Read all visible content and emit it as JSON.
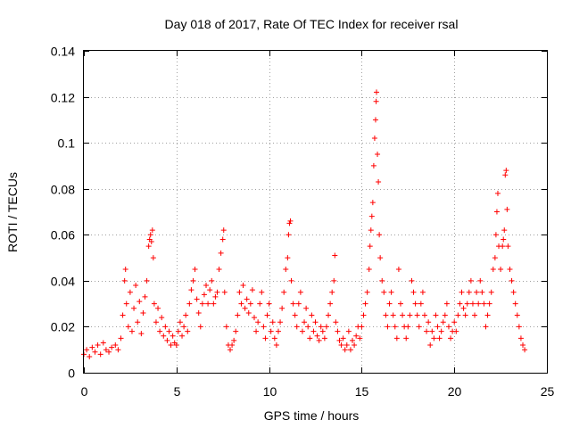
{
  "chart_data": {
    "type": "scatter",
    "title": "Day 018 of 2017, Rate Of TEC Index for receiver rsal",
    "xlabel": "GPS time / hours",
    "ylabel": "ROTI / TECUs",
    "xlim": [
      0,
      25
    ],
    "ylim": [
      0,
      0.14
    ],
    "xticks": [
      0,
      5,
      10,
      15,
      20,
      25
    ],
    "xtick_labels": [
      "0",
      "5",
      "10",
      "15",
      "20",
      "25"
    ],
    "yticks": [
      0,
      0.02,
      0.04,
      0.06,
      0.08,
      0.1,
      0.12,
      0.14
    ],
    "ytick_labels": [
      "0",
      "0.02",
      "0.04",
      "0.06",
      "0.08",
      "0.1",
      "0.12",
      "0.14"
    ],
    "grid": true,
    "marker": "+",
    "color": "#ff0000",
    "series": [
      {
        "name": "ROTI",
        "points": [
          [
            0.0,
            0.008
          ],
          [
            0.15,
            0.01
          ],
          [
            0.3,
            0.007
          ],
          [
            0.45,
            0.011
          ],
          [
            0.6,
            0.009
          ],
          [
            0.75,
            0.012
          ],
          [
            0.9,
            0.008
          ],
          [
            1.05,
            0.013
          ],
          [
            1.2,
            0.01
          ],
          [
            1.35,
            0.009
          ],
          [
            1.5,
            0.011
          ],
          [
            1.7,
            0.012
          ],
          [
            1.85,
            0.01
          ],
          [
            2.0,
            0.015
          ],
          [
            2.1,
            0.025
          ],
          [
            2.2,
            0.04
          ],
          [
            2.25,
            0.045
          ],
          [
            2.3,
            0.03
          ],
          [
            2.4,
            0.02
          ],
          [
            2.5,
            0.035
          ],
          [
            2.6,
            0.018
          ],
          [
            2.7,
            0.028
          ],
          [
            2.8,
            0.038
          ],
          [
            2.9,
            0.022
          ],
          [
            3.0,
            0.031
          ],
          [
            3.1,
            0.017
          ],
          [
            3.2,
            0.026
          ],
          [
            3.3,
            0.033
          ],
          [
            3.4,
            0.04
          ],
          [
            3.5,
            0.055
          ],
          [
            3.55,
            0.058
          ],
          [
            3.6,
            0.06
          ],
          [
            3.65,
            0.057
          ],
          [
            3.7,
            0.062
          ],
          [
            3.75,
            0.05
          ],
          [
            3.8,
            0.03
          ],
          [
            3.9,
            0.022
          ],
          [
            4.0,
            0.028
          ],
          [
            4.1,
            0.018
          ],
          [
            4.2,
            0.024
          ],
          [
            4.3,
            0.016
          ],
          [
            4.4,
            0.02
          ],
          [
            4.5,
            0.014
          ],
          [
            4.6,
            0.018
          ],
          [
            4.7,
            0.012
          ],
          [
            4.8,
            0.016
          ],
          [
            4.9,
            0.013
          ],
          [
            5.0,
            0.012
          ],
          [
            5.1,
            0.018
          ],
          [
            5.2,
            0.022
          ],
          [
            5.3,
            0.016
          ],
          [
            5.4,
            0.02
          ],
          [
            5.5,
            0.025
          ],
          [
            5.6,
            0.018
          ],
          [
            5.7,
            0.03
          ],
          [
            5.8,
            0.036
          ],
          [
            5.9,
            0.04
          ],
          [
            6.0,
            0.045
          ],
          [
            6.1,
            0.032
          ],
          [
            6.2,
            0.026
          ],
          [
            6.3,
            0.02
          ],
          [
            6.4,
            0.03
          ],
          [
            6.5,
            0.034
          ],
          [
            6.6,
            0.038
          ],
          [
            6.7,
            0.03
          ],
          [
            6.8,
            0.036
          ],
          [
            6.9,
            0.04
          ],
          [
            7.0,
            0.03
          ],
          [
            7.1,
            0.033
          ],
          [
            7.2,
            0.035
          ],
          [
            7.3,
            0.045
          ],
          [
            7.4,
            0.052
          ],
          [
            7.5,
            0.058
          ],
          [
            7.55,
            0.062
          ],
          [
            7.6,
            0.035
          ],
          [
            7.7,
            0.02
          ],
          [
            7.8,
            0.012
          ],
          [
            7.9,
            0.01
          ],
          [
            8.0,
            0.012
          ],
          [
            8.1,
            0.014
          ],
          [
            8.2,
            0.018
          ],
          [
            8.3,
            0.025
          ],
          [
            8.4,
            0.035
          ],
          [
            8.5,
            0.03
          ],
          [
            8.6,
            0.038
          ],
          [
            8.7,
            0.028
          ],
          [
            8.8,
            0.032
          ],
          [
            8.9,
            0.026
          ],
          [
            9.0,
            0.03
          ],
          [
            9.1,
            0.036
          ],
          [
            9.2,
            0.024
          ],
          [
            9.3,
            0.018
          ],
          [
            9.4,
            0.022
          ],
          [
            9.5,
            0.03
          ],
          [
            9.6,
            0.035
          ],
          [
            9.7,
            0.02
          ],
          [
            9.8,
            0.015
          ],
          [
            9.9,
            0.025
          ],
          [
            10.0,
            0.03
          ],
          [
            10.1,
            0.018
          ],
          [
            10.2,
            0.022
          ],
          [
            10.3,
            0.015
          ],
          [
            10.4,
            0.012
          ],
          [
            10.5,
            0.018
          ],
          [
            10.6,
            0.022
          ],
          [
            10.7,
            0.028
          ],
          [
            10.8,
            0.035
          ],
          [
            10.9,
            0.045
          ],
          [
            11.0,
            0.05
          ],
          [
            11.05,
            0.06
          ],
          [
            11.1,
            0.065
          ],
          [
            11.15,
            0.066
          ],
          [
            11.2,
            0.04
          ],
          [
            11.3,
            0.03
          ],
          [
            11.4,
            0.025
          ],
          [
            11.5,
            0.02
          ],
          [
            11.6,
            0.03
          ],
          [
            11.7,
            0.035
          ],
          [
            11.8,
            0.018
          ],
          [
            11.9,
            0.022
          ],
          [
            12.0,
            0.028
          ],
          [
            12.1,
            0.02
          ],
          [
            12.2,
            0.015
          ],
          [
            12.3,
            0.025
          ],
          [
            12.4,
            0.018
          ],
          [
            12.5,
            0.022
          ],
          [
            12.6,
            0.016
          ],
          [
            12.7,
            0.014
          ],
          [
            12.8,
            0.02
          ],
          [
            12.9,
            0.018
          ],
          [
            13.0,
            0.015
          ],
          [
            13.1,
            0.02
          ],
          [
            13.2,
            0.025
          ],
          [
            13.3,
            0.03
          ],
          [
            13.4,
            0.035
          ],
          [
            13.5,
            0.04
          ],
          [
            13.55,
            0.051
          ],
          [
            13.6,
            0.022
          ],
          [
            13.7,
            0.018
          ],
          [
            13.8,
            0.014
          ],
          [
            13.9,
            0.012
          ],
          [
            14.0,
            0.015
          ],
          [
            14.1,
            0.01
          ],
          [
            14.2,
            0.012
          ],
          [
            14.3,
            0.018
          ],
          [
            14.4,
            0.01
          ],
          [
            14.5,
            0.014
          ],
          [
            14.6,
            0.012
          ],
          [
            14.7,
            0.016
          ],
          [
            14.8,
            0.02
          ],
          [
            14.9,
            0.015
          ],
          [
            15.0,
            0.02
          ],
          [
            15.1,
            0.025
          ],
          [
            15.2,
            0.03
          ],
          [
            15.3,
            0.035
          ],
          [
            15.4,
            0.045
          ],
          [
            15.45,
            0.055
          ],
          [
            15.5,
            0.062
          ],
          [
            15.55,
            0.068
          ],
          [
            15.6,
            0.074
          ],
          [
            15.65,
            0.09
          ],
          [
            15.7,
            0.102
          ],
          [
            15.75,
            0.11
          ],
          [
            15.78,
            0.118
          ],
          [
            15.8,
            0.122
          ],
          [
            15.85,
            0.095
          ],
          [
            15.9,
            0.083
          ],
          [
            15.95,
            0.06
          ],
          [
            16.0,
            0.05
          ],
          [
            16.1,
            0.04
          ],
          [
            16.2,
            0.035
          ],
          [
            16.3,
            0.025
          ],
          [
            16.4,
            0.02
          ],
          [
            16.5,
            0.03
          ],
          [
            16.6,
            0.035
          ],
          [
            16.7,
            0.025
          ],
          [
            16.8,
            0.02
          ],
          [
            16.9,
            0.015
          ],
          [
            17.0,
            0.045
          ],
          [
            17.1,
            0.03
          ],
          [
            17.2,
            0.025
          ],
          [
            17.3,
            0.02
          ],
          [
            17.4,
            0.015
          ],
          [
            17.5,
            0.02
          ],
          [
            17.6,
            0.025
          ],
          [
            17.7,
            0.04
          ],
          [
            17.8,
            0.035
          ],
          [
            17.9,
            0.03
          ],
          [
            18.0,
            0.025
          ],
          [
            18.1,
            0.02
          ],
          [
            18.2,
            0.03
          ],
          [
            18.3,
            0.035
          ],
          [
            18.4,
            0.025
          ],
          [
            18.5,
            0.018
          ],
          [
            18.6,
            0.022
          ],
          [
            18.7,
            0.012
          ],
          [
            18.8,
            0.018
          ],
          [
            18.9,
            0.015
          ],
          [
            19.0,
            0.025
          ],
          [
            19.1,
            0.02
          ],
          [
            19.2,
            0.015
          ],
          [
            19.3,
            0.018
          ],
          [
            19.4,
            0.022
          ],
          [
            19.5,
            0.025
          ],
          [
            19.6,
            0.03
          ],
          [
            19.7,
            0.02
          ],
          [
            19.8,
            0.015
          ],
          [
            19.9,
            0.018
          ],
          [
            20.0,
            0.022
          ],
          [
            20.1,
            0.018
          ],
          [
            20.2,
            0.025
          ],
          [
            20.3,
            0.03
          ],
          [
            20.4,
            0.035
          ],
          [
            20.5,
            0.028
          ],
          [
            20.6,
            0.025
          ],
          [
            20.7,
            0.03
          ],
          [
            20.8,
            0.035
          ],
          [
            20.9,
            0.04
          ],
          [
            21.0,
            0.03
          ],
          [
            21.1,
            0.025
          ],
          [
            21.2,
            0.035
          ],
          [
            21.3,
            0.03
          ],
          [
            21.4,
            0.04
          ],
          [
            21.5,
            0.035
          ],
          [
            21.6,
            0.03
          ],
          [
            21.7,
            0.02
          ],
          [
            21.8,
            0.025
          ],
          [
            21.9,
            0.03
          ],
          [
            22.0,
            0.035
          ],
          [
            22.1,
            0.045
          ],
          [
            22.2,
            0.05
          ],
          [
            22.25,
            0.06
          ],
          [
            22.3,
            0.07
          ],
          [
            22.35,
            0.078
          ],
          [
            22.4,
            0.055
          ],
          [
            22.5,
            0.045
          ],
          [
            22.6,
            0.055
          ],
          [
            22.65,
            0.058
          ],
          [
            22.7,
            0.062
          ],
          [
            22.75,
            0.086
          ],
          [
            22.8,
            0.088
          ],
          [
            22.85,
            0.071
          ],
          [
            22.9,
            0.055
          ],
          [
            23.0,
            0.045
          ],
          [
            23.1,
            0.04
          ],
          [
            23.2,
            0.035
          ],
          [
            23.3,
            0.03
          ],
          [
            23.4,
            0.025
          ],
          [
            23.5,
            0.02
          ],
          [
            23.6,
            0.015
          ],
          [
            23.7,
            0.012
          ],
          [
            23.8,
            0.01
          ]
        ]
      }
    ]
  }
}
